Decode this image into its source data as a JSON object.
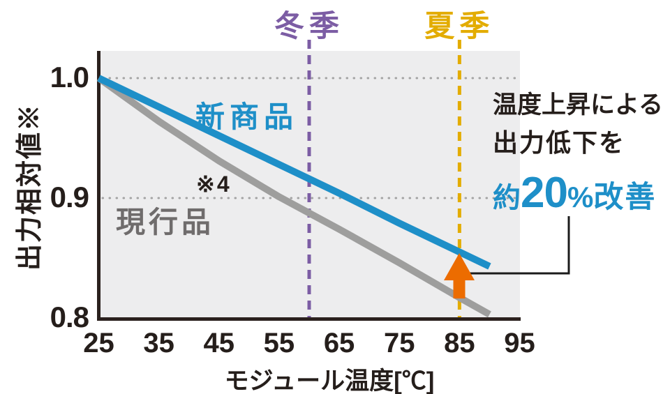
{
  "colors": {
    "text_dark": "#251e1b",
    "new_product_blue": "#1e8fc8",
    "current_product_gray": "#9e9e9d",
    "current_label_gray": "#6f6c6c",
    "winter_purple": "#7c5da4",
    "summer_yellow": "#e3ac00",
    "arrow_orange": "#ec6c00",
    "plot_background": "#ededee",
    "grid_dot_gray": "#a3a3a3"
  },
  "chart_data": {
    "type": "line",
    "title": "",
    "xlabel": "モジュール温度[℃]",
    "ylabel": "出力相対値※",
    "xlim": [
      25,
      95
    ],
    "ylim": [
      0.8,
      1.0
    ],
    "x_ticks": [
      25,
      35,
      45,
      55,
      65,
      75,
      85,
      95
    ],
    "y_ticks": [
      "1.0",
      "0.9",
      "0.8"
    ],
    "grid": "dotted horizontal lines at 1.0 and 0.9",
    "legend_position": "inline labels on plot",
    "series": [
      {
        "name": "新商品",
        "color": "#1e8fc8",
        "x": [
          25,
          35,
          45,
          55,
          65,
          75,
          85,
          90
        ],
        "values": [
          1.0,
          0.976,
          0.952,
          0.928,
          0.904,
          0.879,
          0.855,
          0.843
        ]
      },
      {
        "name": "現行品",
        "color": "#9e9e9d",
        "x": [
          25,
          35,
          45,
          55,
          65,
          75,
          85,
          90
        ],
        "values": [
          1.0,
          0.964,
          0.931,
          0.901,
          0.874,
          0.846,
          0.817,
          0.803
        ]
      }
    ],
    "vlines": [
      {
        "label": "冬季",
        "x": 60,
        "color": "#7c5da4",
        "style": "dashed"
      },
      {
        "label": "夏季",
        "x": 85,
        "color": "#e3ac00",
        "style": "dashed"
      }
    ],
    "footnote": "※4",
    "annotation": {
      "line1": "温度上昇による",
      "line2": "出力低下を",
      "highlight_prefix": "約",
      "highlight_value": "20",
      "highlight_unit": "%",
      "highlight_suffix": "改善",
      "arrow": "orange up-arrow at 85℃ from 現行品 line to 新商品 line"
    }
  }
}
